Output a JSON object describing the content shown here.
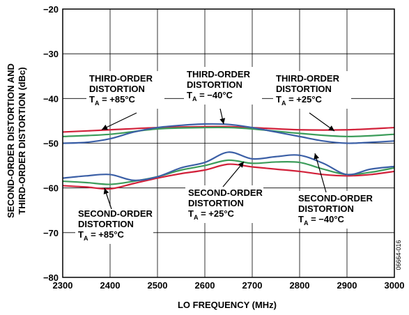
{
  "chart_data": {
    "type": "line",
    "xlabel": "LO FREQUENCY (MHz)",
    "ylabel_line1": "SECOND-ORDER DISTORTION AND",
    "ylabel_line2": "THIRD-ORDER DISTORTION (dBc)",
    "xlim": [
      2300,
      3000
    ],
    "ylim": [
      -80,
      -20
    ],
    "xticks": [
      "2300",
      "2400",
      "2500",
      "2600",
      "2700",
      "2800",
      "2900",
      "3000"
    ],
    "yticks": [
      "−20",
      "−30",
      "−40",
      "−50",
      "−60",
      "−70",
      "−80"
    ],
    "grid": "major",
    "series": [
      {
        "color": "#d2213a",
        "x": [
          2300,
          2400,
          2500,
          2600,
          2650,
          2700,
          2800,
          2900,
          3000
        ],
        "y": [
          -47.5,
          -47.0,
          -46.5,
          -46.3,
          -46.3,
          -46.5,
          -47.0,
          -47.0,
          -46.5
        ]
      },
      {
        "color": "#3c9c5a",
        "x": [
          2300,
          2400,
          2500,
          2600,
          2650,
          2700,
          2800,
          2900,
          3000
        ],
        "y": [
          -48.5,
          -48.0,
          -46.8,
          -46.5,
          -46.5,
          -46.8,
          -47.8,
          -48.5,
          -48.0
        ]
      },
      {
        "color": "#3b5fa6",
        "x": [
          2300,
          2350,
          2400,
          2450,
          2500,
          2550,
          2600,
          2650,
          2700,
          2750,
          2800,
          2850,
          2900,
          2950,
          3000
        ],
        "y": [
          -50.0,
          -49.8,
          -49.0,
          -47.5,
          -46.5,
          -46.0,
          -45.7,
          -45.8,
          -46.5,
          -47.5,
          -48.5,
          -49.5,
          -50.0,
          -49.8,
          -49.5
        ]
      },
      {
        "color": "#d2213a",
        "x": [
          2300,
          2350,
          2400,
          2450,
          2500,
          2550,
          2600,
          2650,
          2700,
          2750,
          2800,
          2850,
          2900,
          2950,
          3000
        ],
        "y": [
          -59.5,
          -59.8,
          -60.2,
          -59.0,
          -57.8,
          -56.8,
          -56.0,
          -54.7,
          -55.3,
          -55.8,
          -56.3,
          -57.0,
          -57.3,
          -57.0,
          -56.3
        ]
      },
      {
        "color": "#3c9c5a",
        "x": [
          2300,
          2350,
          2400,
          2450,
          2500,
          2550,
          2600,
          2650,
          2700,
          2750,
          2800,
          2850,
          2900,
          2950,
          3000
        ],
        "y": [
          -58.5,
          -58.8,
          -59.2,
          -58.5,
          -57.5,
          -56.0,
          -55.0,
          -53.8,
          -54.5,
          -54.2,
          -54.3,
          -55.8,
          -57.0,
          -56.5,
          -55.5
        ]
      },
      {
        "color": "#3b5fa6",
        "x": [
          2300,
          2350,
          2400,
          2450,
          2500,
          2550,
          2600,
          2650,
          2700,
          2750,
          2800,
          2850,
          2900,
          2950,
          3000
        ],
        "y": [
          -57.8,
          -57.3,
          -57.0,
          -58.3,
          -57.5,
          -55.5,
          -54.3,
          -52.0,
          -53.5,
          -53.0,
          -52.7,
          -54.5,
          -57.0,
          -55.8,
          -55.2
        ]
      }
    ],
    "annotations": [
      {
        "lines": [
          "THIRD-ORDER",
          "DISTORTION"
        ],
        "ta": "T",
        "sub": "A",
        "cond": " = +85°C"
      },
      {
        "lines": [
          "THIRD-ORDER",
          "DISTORTION"
        ],
        "ta": "T",
        "sub": "A",
        "cond": " = −40°C"
      },
      {
        "lines": [
          "THIRD-ORDER",
          "DISTORTION"
        ],
        "ta": "T",
        "sub": "A",
        "cond": " = +25°C"
      },
      {
        "lines": [
          "SECOND-ORDER",
          "DISTORTION"
        ],
        "ta": "T",
        "sub": "A",
        "cond": " = +25°C"
      },
      {
        "lines": [
          "SECOND-ORDER",
          "DISTORTION"
        ],
        "ta": "T",
        "sub": "A",
        "cond": " = −40°C"
      },
      {
        "lines": [
          "SECOND-ORDER",
          "DISTORTION"
        ],
        "ta": "T",
        "sub": "A",
        "cond": " = +85°C"
      }
    ],
    "figure_id": "06664-016"
  }
}
